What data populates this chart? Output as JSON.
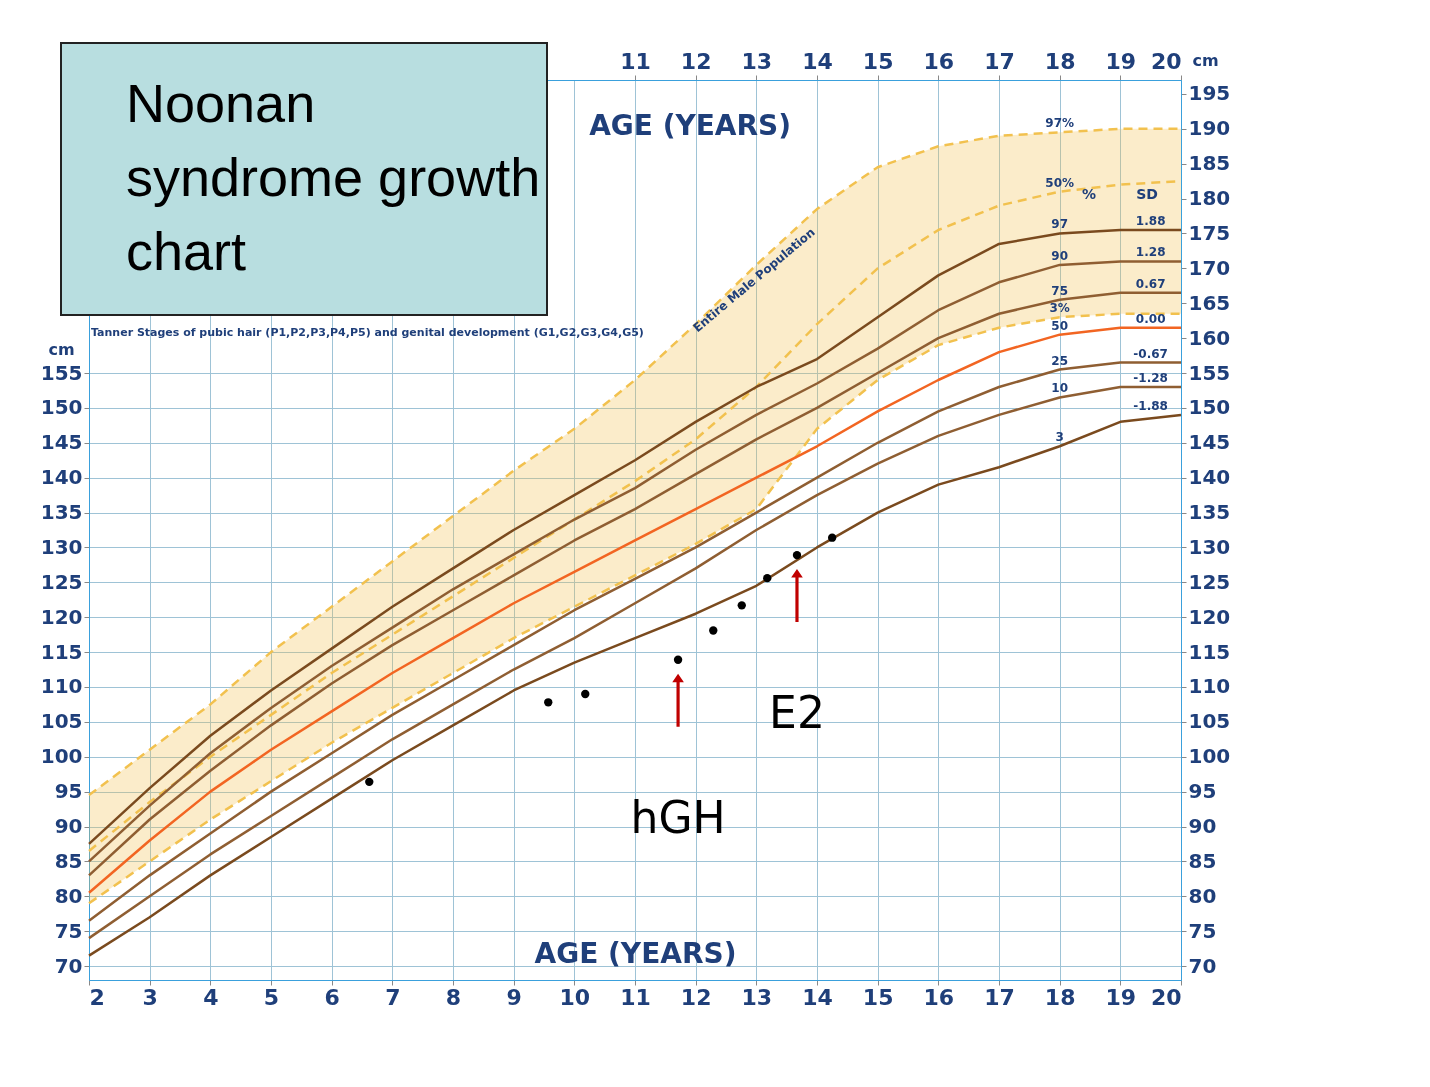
{
  "chart_data": {
    "type": "line",
    "title": "Noonan syndrome growth chart",
    "xlabel": "AGE (YEARS)",
    "x2label": "AGE (YEARS)",
    "ylabel": "cm",
    "y2label": "cm",
    "x": [
      2,
      3,
      4,
      5,
      6,
      7,
      8,
      9,
      10,
      11,
      12,
      13,
      14,
      15,
      16,
      17,
      18,
      19,
      20
    ],
    "xlim": [
      2,
      20
    ],
    "xticks": [
      2,
      3,
      4,
      5,
      6,
      7,
      8,
      9,
      10,
      11,
      12,
      13,
      14,
      15,
      16,
      17,
      18,
      19,
      20
    ],
    "x2lim": [
      2,
      20
    ],
    "x2ticks": [
      11,
      12,
      13,
      14,
      15,
      16,
      17,
      18,
      19,
      20
    ],
    "ylim": [
      68,
      197
    ],
    "yticks": [
      70,
      75,
      80,
      85,
      90,
      95,
      100,
      105,
      110,
      115,
      120,
      125,
      130,
      135,
      140,
      145,
      150,
      155
    ],
    "y2lim": [
      68,
      197
    ],
    "y2ticks": [
      70,
      75,
      80,
      85,
      90,
      95,
      100,
      105,
      110,
      115,
      120,
      125,
      130,
      135,
      140,
      145,
      150,
      155,
      160,
      165,
      170,
      175,
      180,
      185,
      190,
      195
    ],
    "grid": true,
    "series": [
      {
        "name": "50%",
        "color": "#f2c14e",
        "line_style": "dashed",
        "values": [
          86.5,
          93.5,
          100,
          106,
          112,
          117.5,
          123,
          128.5,
          134,
          139.5,
          145.5,
          153,
          162,
          170,
          175.5,
          179,
          181,
          182,
          182.5
        ],
        "lower": [
          79,
          85,
          91,
          96.5,
          102,
          107,
          112,
          117,
          121.5,
          126,
          130.5,
          135.5,
          147,
          154,
          159,
          161.5,
          163,
          163.5,
          163.5
        ],
        "upper": [
          94.5,
          101,
          107.5,
          115,
          121.5,
          128,
          134.5,
          141,
          147,
          154,
          162,
          170.5,
          178.5,
          184.5,
          187.5,
          189,
          189.5,
          190,
          190
        ]
      },
      {
        "name": "97%",
        "color": "#f2c14e",
        "line_style": "dashed",
        "values": [
          94.5,
          101,
          107.5,
          115,
          121.5,
          128,
          134.5,
          141,
          147,
          154,
          162,
          170.5,
          178.5,
          184.5,
          187.5,
          189,
          189.5,
          190,
          190
        ]
      },
      {
        "name": "3%",
        "color": "#f2c14e",
        "line_style": "dashed",
        "values": [
          79,
          85,
          91,
          96.5,
          102,
          107,
          112,
          117,
          121.5,
          126,
          130.5,
          135.5,
          147,
          154,
          159,
          161.5,
          163,
          163.5,
          163.5
        ]
      },
      {
        "name": "97",
        "color": "#7a4a1e",
        "values": [
          87.5,
          95.5,
          103,
          109.5,
          115.5,
          121.5,
          127,
          132.5,
          137.5,
          142.5,
          148,
          153,
          157,
          163,
          169,
          173.5,
          175,
          175.5,
          175.5
        ]
      },
      {
        "name": "90",
        "color": "#8f5e32",
        "values": [
          85,
          93,
          100.5,
          107,
          113,
          118.5,
          124,
          129,
          134,
          138.5,
          144,
          149,
          153.5,
          158.5,
          164,
          168,
          170.5,
          171,
          171
        ]
      },
      {
        "name": "75",
        "color": "#8f5e32",
        "values": [
          83,
          91,
          98,
          104.5,
          110.5,
          116,
          121,
          126,
          131,
          135.5,
          140.5,
          145.5,
          150,
          155,
          160,
          163.5,
          165.5,
          166.5,
          166.5
        ]
      },
      {
        "name": "50",
        "color": "#f26522",
        "values": [
          80.5,
          88,
          95,
          101,
          106.5,
          112,
          117,
          122,
          126.5,
          131,
          135.5,
          140,
          144.5,
          149.5,
          154,
          158,
          160.5,
          161.5,
          161.5
        ]
      },
      {
        "name": "25",
        "color": "#8f5e32",
        "values": [
          76.5,
          83,
          89,
          95,
          100.5,
          106,
          111,
          116,
          121,
          125.5,
          130,
          135,
          140,
          145,
          149.5,
          153,
          155.5,
          156.5,
          156.5
        ]
      },
      {
        "name": "10",
        "color": "#8f5e32",
        "values": [
          74,
          80,
          86,
          91.5,
          97,
          102.5,
          107.5,
          112.5,
          117,
          122,
          127,
          132.5,
          137.5,
          142,
          146,
          149,
          151.5,
          153,
          153
        ]
      },
      {
        "name": "3",
        "color": "#7a4a1e",
        "values": [
          71.5,
          77,
          83,
          88.5,
          94,
          99.5,
          104.5,
          109.5,
          113.5,
          117,
          120.5,
          124.5,
          130,
          135,
          139,
          141.5,
          144.5,
          148,
          149
        ]
      },
      {
        "type": "scatter",
        "color": "#000000",
        "x": [
          6.62,
          9.57,
          10.18,
          11.71,
          12.29,
          12.76,
          13.18,
          13.67,
          14.25
        ],
        "values": [
          96.4,
          107.8,
          109,
          113.9,
          118.1,
          121.7,
          125.6,
          128.9,
          131.4
        ]
      }
    ],
    "annotations": [
      {
        "text": "hGH",
        "x": 11.71,
        "y": 113.9
      },
      {
        "text": "E2",
        "x": 13.67,
        "y": 128.9
      },
      {
        "text": "1.88",
        "x": 19.5,
        "y": 175.5
      },
      {
        "text": "1.28",
        "x": 19.5,
        "y": 171
      },
      {
        "text": "0.67",
        "x": 19.5,
        "y": 166.5
      },
      {
        "text": "0.00",
        "x": 19.5,
        "y": 161.5
      },
      {
        "text": "-0.67",
        "x": 19.5,
        "y": 156.5
      },
      {
        "text": "-1.28",
        "x": 19.5,
        "y": 153
      },
      {
        "text": "-1.88",
        "x": 19.5,
        "y": 149
      },
      "%",
      "SD",
      "Entire Male Population",
      "Tanner Stages of pubic hair (P1,P2,P3,P4,P5) and genital development (G1,G2,G3,G4,G5)"
    ]
  }
}
